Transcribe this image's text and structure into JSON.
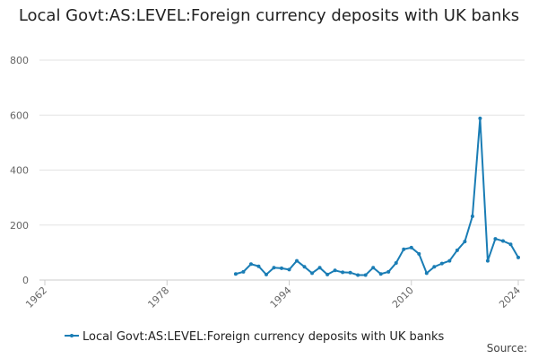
{
  "chart_data": {
    "type": "line",
    "title": "Local Govt:AS:LEVEL:Foreign currency deposits with UK banks",
    "x": [
      1987,
      1988,
      1989,
      1990,
      1991,
      1992,
      1993,
      1994,
      1995,
      1996,
      1997,
      1998,
      1999,
      2000,
      2001,
      2002,
      2003,
      2004,
      2005,
      2006,
      2007,
      2008,
      2009,
      2010,
      2011,
      2012,
      2013,
      2014,
      2015,
      2016,
      2017,
      2018,
      2019,
      2020,
      2021,
      2022,
      2023,
      2024
    ],
    "series": [
      {
        "name": "Local Govt:AS:LEVEL:Foreign currency deposits with UK banks",
        "color": "#1a7db5",
        "values": [
          22,
          30,
          58,
          50,
          20,
          45,
          43,
          38,
          70,
          48,
          25,
          45,
          20,
          35,
          28,
          27,
          18,
          18,
          45,
          22,
          30,
          62,
          112,
          118,
          95,
          25,
          48,
          60,
          70,
          108,
          140,
          232,
          588,
          70,
          150,
          142,
          130,
          82
        ]
      }
    ],
    "xlim": [
      1962,
      2024
    ],
    "xticks": [
      1962,
      1978,
      1994,
      2010,
      2024
    ],
    "ylim": [
      0,
      800
    ],
    "yticks": [
      0,
      200,
      400,
      600,
      800
    ],
    "grid": true,
    "source": "Source:"
  }
}
